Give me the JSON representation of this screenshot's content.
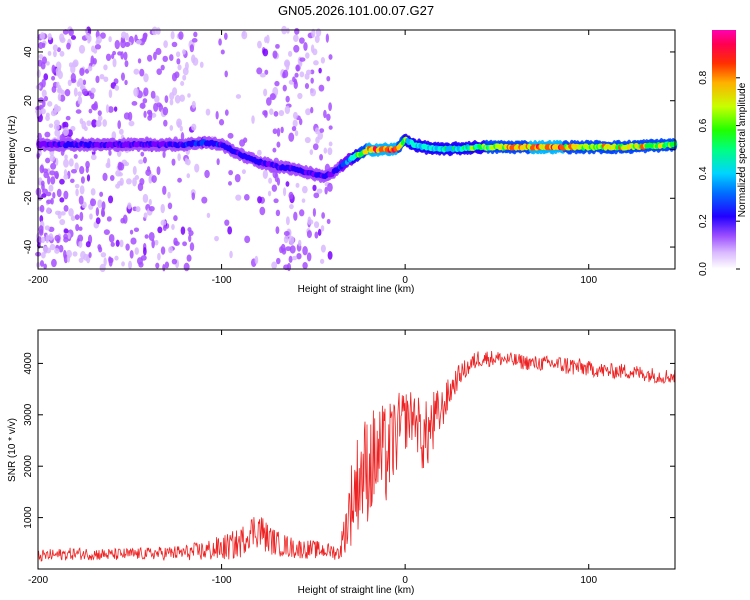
{
  "figure": {
    "title": "GN05.2026.101.00.07.G27"
  },
  "colors": {
    "background": "#ffffff",
    "axes": "#000000",
    "snr_line": "#ee2222",
    "colormap": [
      "#ffffff",
      "#d9b8ff",
      "#a64dff",
      "#7a00ff",
      "#2200ff",
      "#0044ff",
      "#00b4ff",
      "#00ffd0",
      "#00ff30",
      "#b4ff00",
      "#ffd000",
      "#ff5000",
      "#ff0044",
      "#ff00aa"
    ]
  },
  "chart_data": [
    {
      "type": "heatmap",
      "title": "GN05.2026.101.00.07.G27",
      "xlabel": "Height of straight line (km)",
      "ylabel": "Frequency (Hz)",
      "xlim": [
        -200,
        147
      ],
      "ylim": [
        -49,
        49
      ],
      "x_ticks": [
        -200,
        -100,
        0,
        100
      ],
      "x_tick_labels": [
        "-200",
        "-100",
        "0",
        "100"
      ],
      "y_ticks": [
        -40,
        -20,
        0,
        20,
        40
      ],
      "y_tick_labels": [
        "-40",
        "-20",
        "0",
        "20",
        "40"
      ],
      "grid": false,
      "colorbar": {
        "label": "Normalized spectral amplitude",
        "range": [
          0,
          1
        ],
        "ticks": [
          0.0,
          0.2,
          0.4,
          0.6,
          0.8
        ],
        "tick_labels": [
          "0.0",
          "0.2",
          "0.4",
          "0.6",
          "0.8"
        ]
      },
      "ridge": {
        "description": "dominant frequency track (Hz) vs height (km)",
        "x": [
          -200,
          -180,
          -160,
          -140,
          -120,
          -110,
          -100,
          -90,
          -80,
          -70,
          -60,
          -50,
          -45,
          -40,
          -35,
          -30,
          -20,
          -10,
          -5,
          0,
          5,
          10,
          20,
          40,
          60,
          80,
          100,
          120,
          147
        ],
        "freq": [
          2,
          2,
          2,
          2,
          2,
          3,
          2,
          -2,
          -5,
          -7,
          -8,
          -10,
          -11,
          -10,
          -7,
          -4,
          0,
          0,
          0,
          4,
          2,
          1,
          0,
          1,
          1,
          1,
          1,
          1,
          2
        ],
        "amplitude": [
          0.25,
          0.3,
          0.25,
          0.25,
          0.3,
          0.35,
          0.3,
          0.3,
          0.3,
          0.3,
          0.3,
          0.28,
          0.28,
          0.3,
          0.35,
          0.45,
          0.8,
          0.85,
          0.8,
          0.6,
          0.5,
          0.5,
          0.5,
          0.6,
          0.75,
          0.8,
          0.7,
          0.75,
          0.65
        ]
      },
      "noise_region": {
        "description": "scattered low-amplitude spectral energy across all frequencies",
        "x_range": [
          -200,
          -40
        ],
        "amplitude_range": [
          0.05,
          0.2
        ]
      }
    },
    {
      "type": "line",
      "xlabel": "Height of straight line (km)",
      "ylabel": "SNR (10 * v/v)",
      "xlim": [
        -200,
        147
      ],
      "ylim": [
        0,
        4650
      ],
      "x_ticks": [
        -200,
        -100,
        0,
        100
      ],
      "x_tick_labels": [
        "-200",
        "-100",
        "0",
        "100"
      ],
      "y_ticks": [
        1000,
        2000,
        3000,
        4000
      ],
      "y_tick_labels": [
        "1000",
        "2000",
        "3000",
        "4000"
      ],
      "grid": false,
      "series": [
        {
          "name": "SNR",
          "color": "#ee2222",
          "x": [
            -200,
            -180,
            -160,
            -140,
            -120,
            -110,
            -100,
            -90,
            -85,
            -80,
            -75,
            -70,
            -60,
            -50,
            -40,
            -36,
            -33,
            -30,
            -25,
            -20,
            -15,
            -10,
            -5,
            0,
            5,
            10,
            15,
            20,
            25,
            30,
            40,
            50,
            60,
            70,
            80,
            90,
            100,
            110,
            120,
            130,
            140,
            147
          ],
          "y": [
            250,
            300,
            280,
            300,
            320,
            350,
            400,
            500,
            700,
            800,
            600,
            500,
            400,
            380,
            350,
            300,
            700,
            1200,
            1800,
            2000,
            2200,
            2200,
            2600,
            2900,
            3000,
            2500,
            2800,
            3100,
            3500,
            3800,
            4100,
            4100,
            4050,
            4000,
            4000,
            3950,
            3900,
            3850,
            3850,
            3800,
            3750,
            3750
          ],
          "jitter": [
            120,
            120,
            120,
            120,
            150,
            200,
            250,
            300,
            300,
            400,
            300,
            250,
            200,
            180,
            150,
            150,
            400,
            800,
            1000,
            1100,
            1000,
            1000,
            800,
            600,
            500,
            700,
            700,
            400,
            300,
            200,
            180,
            150,
            150,
            150,
            150,
            200,
            150,
            150,
            150,
            150,
            150,
            150
          ]
        }
      ]
    }
  ]
}
